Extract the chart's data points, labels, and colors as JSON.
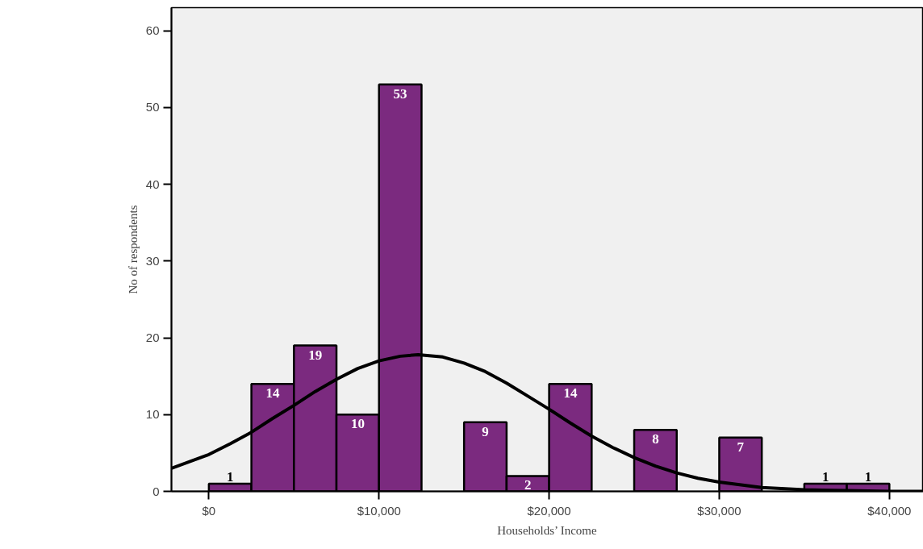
{
  "chart_data": {
    "type": "histogram",
    "xlabel": "Households’ Income",
    "ylabel": "No of respondents",
    "bins": [
      0,
      2500,
      5000,
      7500,
      10000,
      12500,
      15000,
      17500,
      20000,
      22500,
      25000,
      27500,
      30000,
      32500,
      35000,
      37500,
      40000
    ],
    "values": [
      1,
      14,
      19,
      10,
      53,
      0,
      9,
      2,
      14,
      0,
      8,
      0,
      7,
      0,
      1,
      1
    ],
    "value_labels": [
      "1",
      "14",
      "19",
      "10",
      "53",
      null,
      "9",
      "2",
      "14",
      null,
      "8",
      null,
      "7",
      null,
      "1",
      "1"
    ],
    "color": "#7b2a7f",
    "series": [
      {
        "type": "line",
        "color": "#000000",
        "x": [
          -2200,
          0,
          1250,
          2500,
          3750,
          5000,
          6250,
          7500,
          8750,
          10000,
          11250,
          12300,
          13750,
          15000,
          16250,
          17500,
          18750,
          20000,
          21250,
          22500,
          23750,
          25000,
          26250,
          27500,
          28750,
          30000,
          32500,
          35000,
          37500,
          40000,
          42000
        ],
        "values": [
          3.0,
          4.8,
          6.2,
          7.7,
          9.5,
          11.2,
          13.0,
          14.6,
          16.0,
          17.0,
          17.6,
          17.8,
          17.5,
          16.7,
          15.6,
          14.1,
          12.4,
          10.7,
          8.9,
          7.2,
          5.7,
          4.4,
          3.3,
          2.4,
          1.7,
          1.2,
          0.5,
          0.2,
          0.1,
          0,
          0
        ]
      }
    ],
    "xlim": [
      -2200,
      42000
    ],
    "ylim": [
      0,
      63
    ],
    "xticks": [
      {
        "value": 0,
        "label": "$0"
      },
      {
        "value": 10000,
        "label": "$10,000"
      },
      {
        "value": 20000,
        "label": "$20,000"
      },
      {
        "value": 30000,
        "label": "$30,000"
      },
      {
        "value": 40000,
        "label": "$40,000"
      }
    ],
    "yticks": [
      0,
      10,
      20,
      30,
      40,
      50,
      60
    ],
    "grid": false,
    "marker": "none",
    "line_style": "solid"
  }
}
